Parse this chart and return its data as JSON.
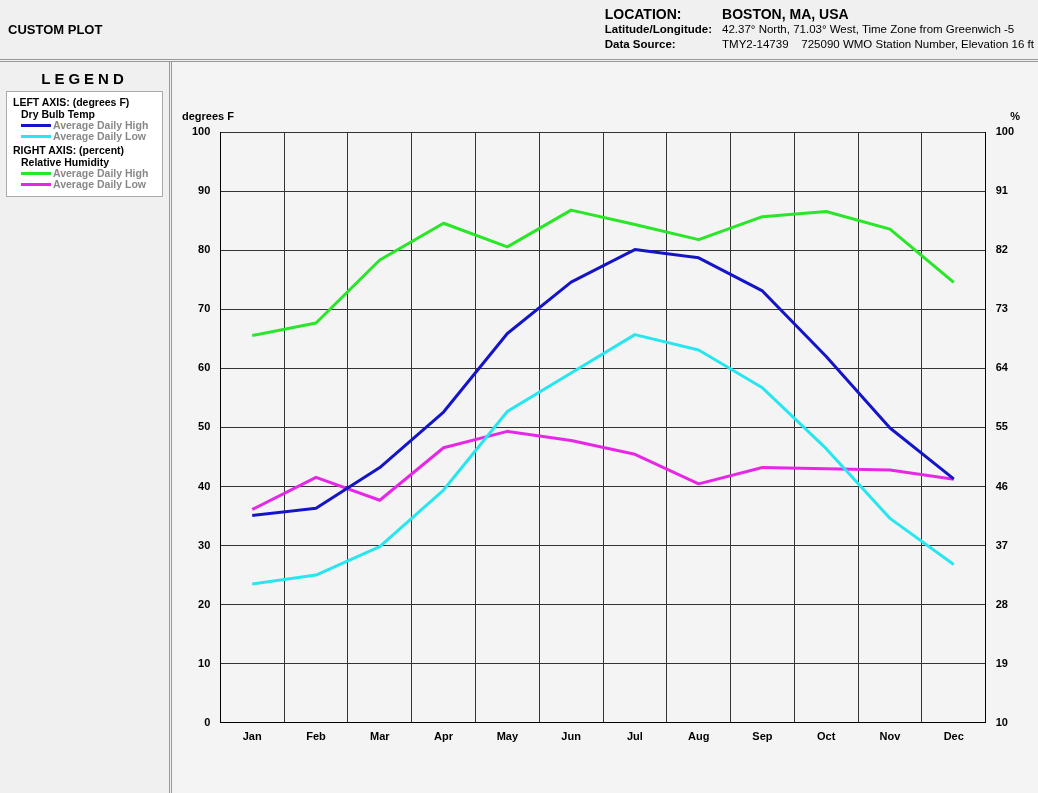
{
  "chart_data": {
    "type": "line",
    "title": "CUSTOM PLOT",
    "legend_title": "LEGEND",
    "ylabel": "degrees F",
    "y2label": "%",
    "annotations": [
      "LOCATION:",
      "BOSTON, MA, USA",
      "Latitude/Longitude:",
      "42.37° North, 71.03° West, Time Zone from Greenwich -5",
      "Data Source:",
      "TMY2-14739    725090 WMO Station Number, Elevation 16 ft",
      "LEFT AXIS: (degrees F)",
      "Dry Bulb Temp",
      "RIGHT AXIS: (percent)",
      "Relative Humidity"
    ],
    "categories": [
      "Jan",
      "Feb",
      "Mar",
      "Apr",
      "May",
      "Jun",
      "Jul",
      "Aug",
      "Sep",
      "Oct",
      "Nov",
      "Dec"
    ],
    "series": [
      {
        "name": "Average Daily High",
        "color": "#1414c8",
        "values": [
          35.1,
          36.3,
          43.2,
          52.6,
          65.9,
          74.6,
          80.1,
          78.7,
          73.1,
          62.0,
          49.9,
          41.3
        ]
      },
      {
        "name": "Average Daily Low",
        "color": "#28e6f0",
        "values": [
          23.5,
          25.0,
          29.8,
          39.4,
          52.7,
          59.2,
          65.7,
          63.1,
          56.7,
          46.4,
          34.6,
          26.8
        ]
      },
      {
        "name": "Average Daily High",
        "color": "#28e628",
        "axis": "y2",
        "values": [
          69.0,
          70.9,
          80.5,
          86.1,
          82.5,
          88.1,
          85.9,
          83.6,
          87.1,
          87.9,
          85.2,
          77.1
        ]
      },
      {
        "name": "Average Daily Low",
        "color": "#e628e6",
        "axis": "y2",
        "values": [
          42.5,
          47.4,
          43.9,
          51.9,
          54.4,
          53.0,
          50.9,
          46.4,
          48.9,
          48.7,
          48.5,
          47.1
        ]
      }
    ],
    "ylim": [
      0,
      100
    ],
    "yticks": [
      0,
      10,
      20,
      30,
      40,
      50,
      60,
      70,
      80,
      90,
      100
    ],
    "y2lim": [
      10,
      100
    ],
    "y2ticks": [
      10,
      19,
      28,
      37,
      46,
      55,
      64,
      73,
      82,
      91,
      100
    ],
    "grid": true,
    "legend": "left",
    "marker": "none",
    "line_style": "solid"
  }
}
